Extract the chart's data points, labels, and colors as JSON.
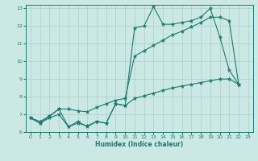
{
  "xlabel": "Humidex (Indice chaleur)",
  "xlim": [
    -0.5,
    23.5
  ],
  "ylim": [
    6,
    13.2
  ],
  "yticks": [
    6,
    7,
    8,
    9,
    10,
    11,
    12,
    13
  ],
  "xticks": [
    0,
    1,
    2,
    3,
    4,
    5,
    6,
    7,
    8,
    9,
    10,
    11,
    12,
    13,
    14,
    15,
    16,
    17,
    18,
    19,
    20,
    21,
    22,
    23
  ],
  "bg_color": "#cce8e4",
  "grid_color": "#aacfca",
  "line_color": "#1a7a6e",
  "series1_x": [
    0,
    1,
    2,
    3,
    4,
    5,
    6,
    7,
    8,
    9,
    10,
    11,
    12,
    13,
    14,
    15,
    16,
    17,
    18,
    19,
    20,
    21,
    22
  ],
  "series1_y": [
    6.8,
    6.5,
    6.9,
    7.3,
    6.3,
    6.6,
    6.3,
    6.6,
    6.5,
    7.6,
    7.5,
    11.9,
    12.0,
    13.1,
    12.1,
    12.1,
    12.2,
    12.3,
    12.5,
    13.0,
    11.4,
    9.5,
    8.7
  ],
  "series2_x": [
    0,
    1,
    2,
    3,
    4,
    5,
    6,
    7,
    8,
    9,
    10,
    11,
    12,
    13,
    14,
    15,
    16,
    17,
    18,
    19,
    20,
    21,
    22
  ],
  "series2_y": [
    6.8,
    6.6,
    6.9,
    7.3,
    7.3,
    7.2,
    7.15,
    7.4,
    7.6,
    7.8,
    7.9,
    10.3,
    10.6,
    10.9,
    11.2,
    11.5,
    11.7,
    11.95,
    12.2,
    12.5,
    12.5,
    12.3,
    8.7
  ],
  "series3_x": [
    0,
    1,
    2,
    3,
    4,
    5,
    6,
    7,
    8,
    9,
    10,
    11,
    12,
    13,
    14,
    15,
    16,
    17,
    18,
    19,
    20,
    21,
    22
  ],
  "series3_y": [
    6.8,
    6.5,
    6.8,
    7.0,
    6.3,
    6.5,
    6.35,
    6.6,
    6.5,
    7.6,
    7.5,
    7.9,
    8.05,
    8.2,
    8.35,
    8.5,
    8.6,
    8.7,
    8.8,
    8.9,
    9.0,
    9.0,
    8.7
  ]
}
